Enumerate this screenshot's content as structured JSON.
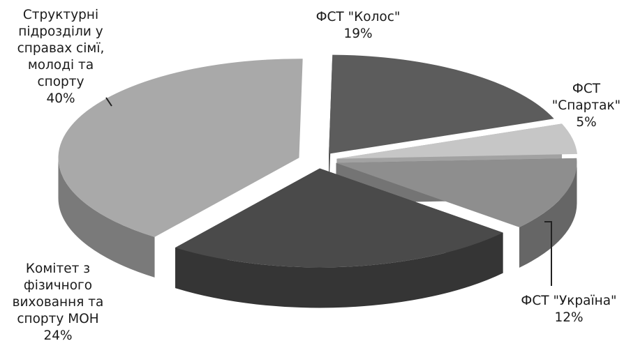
{
  "chart_data": {
    "type": "pie",
    "three_d": true,
    "exploded": true,
    "legend": "none",
    "grid": false,
    "slices": [
      {
        "label_lines": [
          "ФСТ \"Колос\""
        ],
        "percent_label": "19%",
        "value": 19,
        "color": "#5c5c5c"
      },
      {
        "label_lines": [
          "ФСТ",
          "\"Спартак\""
        ],
        "percent_label": "5%",
        "value": 5,
        "color": "#c6c6c6"
      },
      {
        "label_lines": [
          "ФСТ \"Україна\""
        ],
        "percent_label": "12%",
        "value": 12,
        "color": "#8e8e8e"
      },
      {
        "label_lines": [
          "Комітет з",
          "фізичного",
          "виховання та",
          "спорту МОН"
        ],
        "percent_label": "24%",
        "value": 24,
        "color": "#4a4a4a"
      },
      {
        "label_lines": [
          "Структурні",
          "підрозділи у",
          "справах сімї,",
          "молоді та",
          "спорту"
        ],
        "percent_label": "40%",
        "value": 40,
        "color": "#a9a9a9"
      }
    ]
  }
}
